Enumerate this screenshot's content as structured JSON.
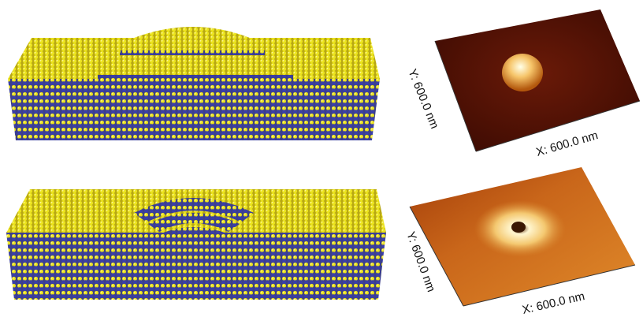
{
  "panels": [
    {
      "id": "top",
      "feature": "mound",
      "atom_colors": {
        "gold": "#e8e21c",
        "navy": "#3a3f9a"
      },
      "afm": {
        "x_label": "X: 600.0 nm",
        "y_label": "Y: 600.0 nm",
        "surface_color": "#5a1406",
        "peak_color": "#fff3c0"
      }
    },
    {
      "id": "bottom",
      "feature": "pit",
      "atom_colors": {
        "gold": "#e8e21c",
        "navy": "#3a3f9a"
      },
      "afm": {
        "x_label": "X: 600.0 nm",
        "y_label": "Y: 600.0 nm",
        "surface_color": "#b84d10",
        "peak_color": "#ffe9a8"
      }
    }
  ]
}
